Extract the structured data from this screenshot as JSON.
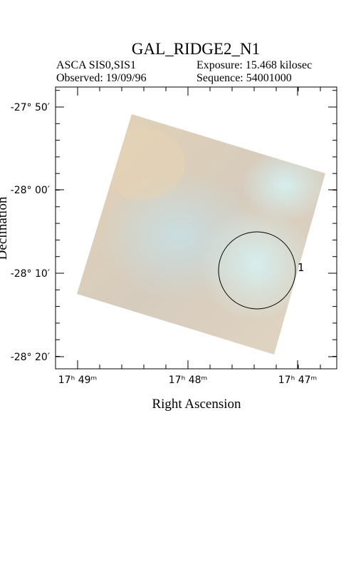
{
  "header": {
    "title": "GAL_RIDGE2_N1",
    "instrument": "ASCA SIS0,SIS1",
    "observed": "Observed: 19/09/96",
    "exposure": "Exposure: 15.468 kilosec",
    "sequence": "Sequence: 54001000"
  },
  "axes": {
    "x_label": "Right Ascension",
    "y_label": "Declination",
    "x_ticks": [
      "17ʰ 49ᵐ",
      "17ʰ 48ᵐ",
      "17ʰ 47ᵐ"
    ],
    "y_ticks": [
      "-27° 50′",
      "-28° 00′",
      "-28° 10′",
      "-28° 20′"
    ]
  },
  "regions": [
    {
      "label": "1"
    }
  ]
}
